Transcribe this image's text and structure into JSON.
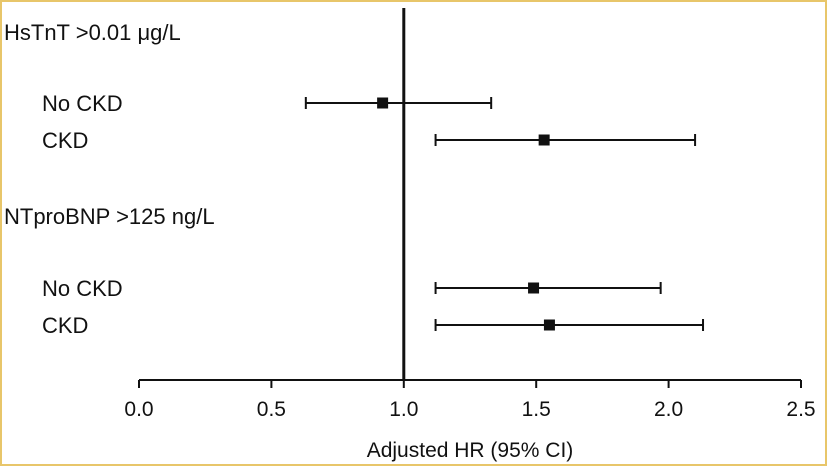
{
  "colors": {
    "frame": "#e8c66a",
    "ink": "#111111"
  },
  "chart_data": {
    "type": "forest",
    "xlabel": "Adjusted HR (95% CI)",
    "xlim": [
      0,
      2.5
    ],
    "xticks": [
      "0.0",
      "0.5",
      "1.0",
      "1.5",
      "2.0",
      "2.5"
    ],
    "reference_line": 1.0,
    "groups": [
      {
        "title": "HsTnT >0.01 μg/L",
        "rows": [
          {
            "label": "No CKD",
            "hr": 0.92,
            "lower": 0.63,
            "upper": 1.33
          },
          {
            "label": "CKD",
            "hr": 1.53,
            "lower": 1.12,
            "upper": 2.1
          }
        ]
      },
      {
        "title": "NTproBNP >125 ng/L",
        "rows": [
          {
            "label": "No CKD",
            "hr": 1.49,
            "lower": 1.12,
            "upper": 1.97
          },
          {
            "label": "CKD",
            "hr": 1.55,
            "lower": 1.12,
            "upper": 2.13
          }
        ]
      }
    ]
  }
}
